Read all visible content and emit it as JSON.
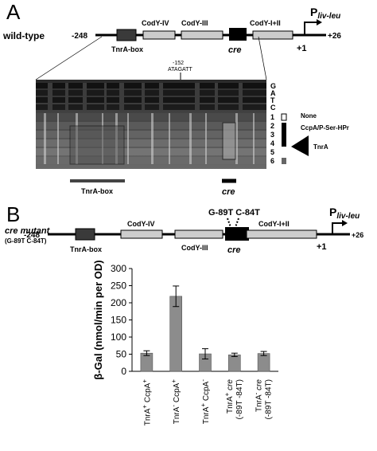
{
  "panel_a": {
    "label": "A",
    "row_label": "wild-type",
    "coord_left": "-248",
    "coord_right": "+26",
    "promoter_main": "P",
    "promoter_sub": "liv-leu",
    "tss": "+1",
    "boxes": {
      "tnra": "TnrA-box",
      "cody4": "CodY-IV",
      "cody3": "CodY-III",
      "cody12": "CodY-I+II",
      "cre": "cre"
    },
    "arrow_pos": "-152",
    "arrow_seq": "ATAGATT",
    "ladder": [
      "G",
      "A",
      "T",
      "C"
    ],
    "lane_numbers": [
      "1",
      "2",
      "3",
      "4",
      "5",
      "6"
    ],
    "condition_none": "None",
    "condition_ccpa": "CcpA/P-Ser-HPr",
    "condition_tnra": "TnrA",
    "footprint_tnra": "TnrA-box",
    "footprint_cre": "cre"
  },
  "panel_b": {
    "label": "B",
    "row_label": "cre mutant",
    "row_sublabel": "(G-89T C-84T)",
    "coord_left": "-248",
    "coord_right": "+26",
    "promoter_main": "P",
    "promoter_sub": "liv-leu",
    "tss": "+1",
    "mutations": "G-89T C-84T",
    "boxes": {
      "tnra": "TnrA-box",
      "cody4": "CodY-IV",
      "cody3": "CodY-III",
      "cody12": "CodY-I+II",
      "cre": "cre"
    }
  },
  "chart_data": {
    "type": "bar",
    "ylabel": "β-Gal (nmol/min per OD)",
    "ylim": [
      0,
      300
    ],
    "yticks": [
      0,
      50,
      100,
      150,
      200,
      250,
      300
    ],
    "categories": [
      "TnrA+ CcpA+",
      "TnrA- CcpA+",
      "TnrA+ CcpA-",
      "TnrA+ cre (-89T -84T)",
      "TnrA- cre (-89T -84T)"
    ],
    "values": [
      53,
      219,
      51,
      48,
      52
    ],
    "errors": [
      7,
      30,
      15,
      5,
      6
    ],
    "bar_color": "#8c8c8c"
  }
}
